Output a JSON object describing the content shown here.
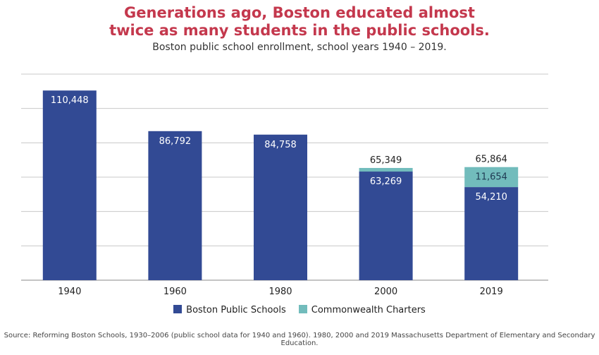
{
  "chart_data": {
    "type": "bar",
    "stacked": true,
    "title": "Generations ago, Boston educated almost twice as many students in the public schools.",
    "title_lines": [
      "Generations ago, Boston educated almost",
      "twice as many students in the public schools."
    ],
    "subtitle": "Boston public school enrollment, school years 1940 – 2019.",
    "categories": [
      "1940",
      "1960",
      "1980",
      "2000",
      "2019"
    ],
    "series": [
      {
        "name": "Boston Public Schools",
        "color": "#324a94",
        "values": [
          110448,
          86792,
          84758,
          63269,
          54210
        ],
        "labels": [
          "110,448",
          "86,792",
          "84,758",
          "63,269",
          "54,210"
        ]
      },
      {
        "name": "Commonwealth Charters",
        "color": "#72bcbc",
        "values": [
          0,
          0,
          0,
          2080,
          11654
        ],
        "labels": [
          "",
          "",
          "",
          "",
          "11,654"
        ]
      }
    ],
    "totals": [
      "",
      "",
      "",
      "65,349",
      "65,864"
    ],
    "ylim": [
      0,
      120000
    ],
    "ytick_step": 20000,
    "y_tick_labels_shown": false,
    "grid": true,
    "legend": "bottom",
    "source": "Source: Reforming Boston Schools, 1930–2006 (public school data for 1940 and 1960). 1980, 2000 and 2019 Massachusetts Department of Elementary and Secondary Education."
  }
}
